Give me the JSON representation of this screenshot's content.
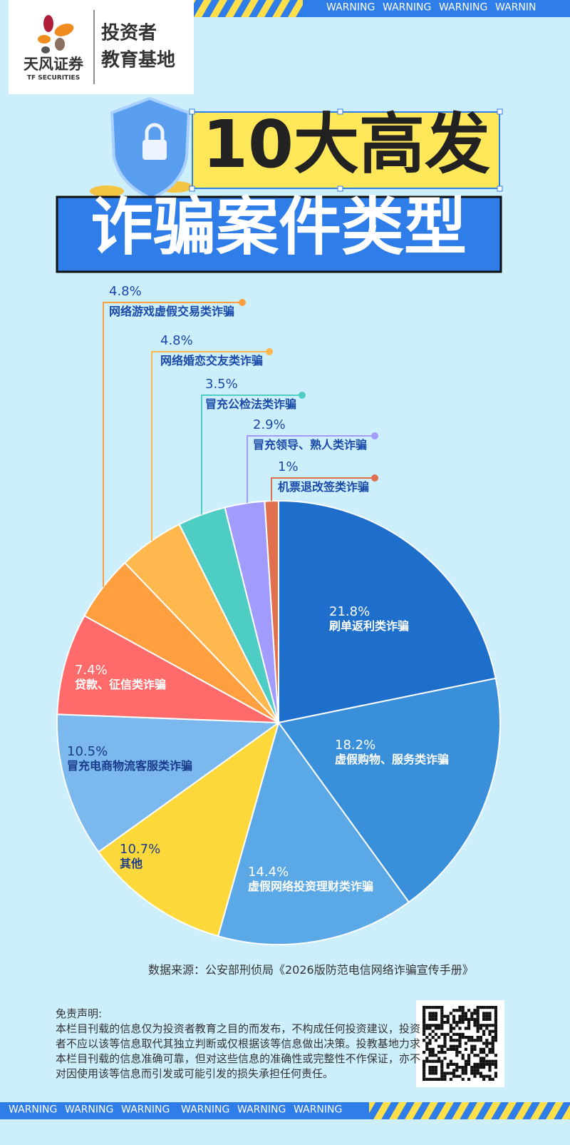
{
  "header": {
    "logo_name": "天风证券",
    "logo_en": "TF SECURITIES",
    "title_lines": [
      "投资者",
      "教育基地"
    ]
  },
  "warning_top": [
    "WARNING",
    "WARNING",
    "WARNING",
    "WARNIN"
  ],
  "warning_bottom": [
    "WARNING",
    "WARNING",
    "WARNING",
    "WARNING",
    "WARNING",
    "WARNING"
  ],
  "title": {
    "line1": "10大高发",
    "line2": "诈骗案件类型"
  },
  "chart_data": {
    "type": "pie",
    "categories": [
      "刷单返利类诈骗",
      "虚假购物、服务类诈骗",
      "虚假网络投资理财类诈骗",
      "其他",
      "冒充电商物流客服类诈骗",
      "贷款、征信类诈骗",
      "网络游戏虚假交易类诈骗",
      "网络婚恋交友类诈骗",
      "冒充公检法类诈骗",
      "冒充领导、熟人类诈骗",
      "机票退改签类诈骗"
    ],
    "values": [
      21.8,
      18.2,
      14.4,
      10.7,
      10.5,
      7.4,
      4.8,
      4.8,
      3.5,
      2.9,
      1
    ],
    "value_labels": [
      "21.8%",
      "18.2%",
      "14.4%",
      "10.7%",
      "10.5%",
      "7.4%",
      "4.8%",
      "4.8%",
      "3.5%",
      "2.9%",
      "1%"
    ],
    "colors": [
      "#1e6fcc",
      "#3a8fdb",
      "#5aa8e6",
      "#fdd83a",
      "#7ab8ee",
      "#ff6b6b",
      "#ff9f40",
      "#ffb84d",
      "#4ecdc4",
      "#a29bfe",
      "#e07050"
    ]
  },
  "source": "数据来源：公安部刑侦局《2026版防范电信网络诈骗宣传手册》",
  "disclaimer": {
    "heading": "免责声明:",
    "body": "本栏目刊载的信息仅为投资者教育之目的而发布，不构成任何投资建议，投资者不应以该等信息取代其独立判断或仅根据该等信息做出决策。投教基地力求本栏目刊载的信息准确可靠，但对这些信息的准确性或完整性不作保证，亦不对因使用该等信息而引发或可能引发的损失承担任何责任。"
  }
}
